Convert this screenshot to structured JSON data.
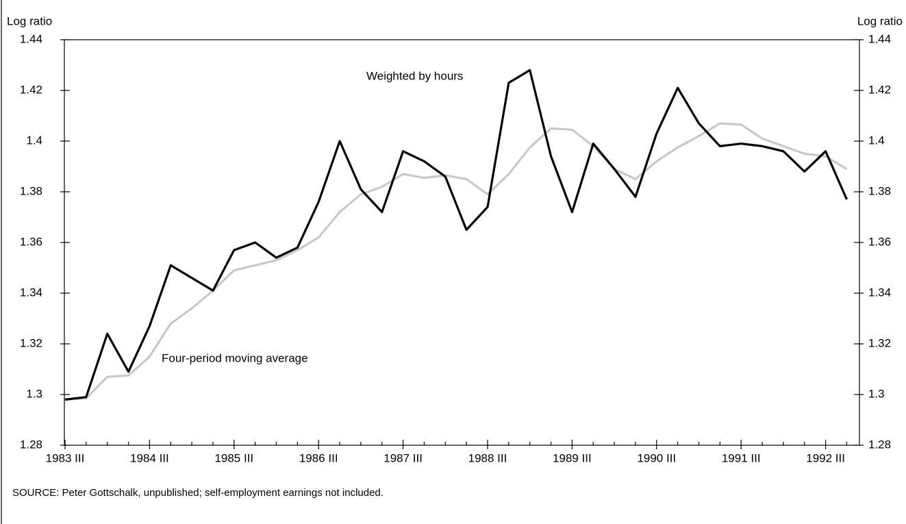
{
  "chart_data": {
    "type": "line",
    "y_label_left": "Log ratio",
    "y_label_right": "Log ratio",
    "source": "SOURCE:  Peter Gottschalk, unpublished; self-employment earnings not included.",
    "categories": [
      "1983 III",
      null,
      null,
      null,
      "1984 III",
      null,
      null,
      null,
      "1985 III",
      null,
      null,
      null,
      "1986 III",
      null,
      null,
      null,
      "1987 III",
      null,
      null,
      null,
      "1988 III",
      null,
      null,
      null,
      "1989 III",
      null,
      null,
      null,
      "1990 III",
      null,
      null,
      null,
      "1991 III",
      null,
      null,
      null,
      "1992 III",
      null
    ],
    "series": [
      {
        "name": "Weighted by hours",
        "color": "#000000",
        "values": [
          1.298,
          1.299,
          1.324,
          1.309,
          1.327,
          1.351,
          1.346,
          1.341,
          1.357,
          1.36,
          1.354,
          1.358,
          1.376,
          1.4,
          1.381,
          1.372,
          1.396,
          1.392,
          1.386,
          1.365,
          1.374,
          1.423,
          1.428,
          1.394,
          1.372,
          1.399,
          1.389,
          1.378,
          1.403,
          1.421,
          1.407,
          1.398,
          1.399,
          1.398,
          1.396,
          1.388,
          1.396,
          1.377
        ]
      },
      {
        "name": "Four-period moving average",
        "color": "#c8c8c8",
        "values": [
          1.298,
          1.2985,
          1.307,
          1.3075,
          1.315,
          1.328,
          1.334,
          1.341,
          1.349,
          1.351,
          1.353,
          1.357,
          1.362,
          1.372,
          1.379,
          1.382,
          1.387,
          1.3855,
          1.3865,
          1.385,
          1.379,
          1.387,
          1.3975,
          1.405,
          1.4045,
          1.398,
          1.389,
          1.385,
          1.392,
          1.3975,
          1.402,
          1.407,
          1.4065,
          1.401,
          1.398,
          1.395,
          1.394,
          1.389
        ]
      }
    ],
    "ylim": [
      1.28,
      1.44
    ],
    "yticks": [
      1.28,
      1.3,
      1.32,
      1.34,
      1.36,
      1.38,
      1.4,
      1.42,
      1.44
    ],
    "y2lim": [
      1.28,
      1.44
    ],
    "y2ticks": [
      1.28,
      1.3,
      1.32,
      1.34,
      1.36,
      1.38,
      1.4,
      1.42,
      1.44
    ]
  }
}
